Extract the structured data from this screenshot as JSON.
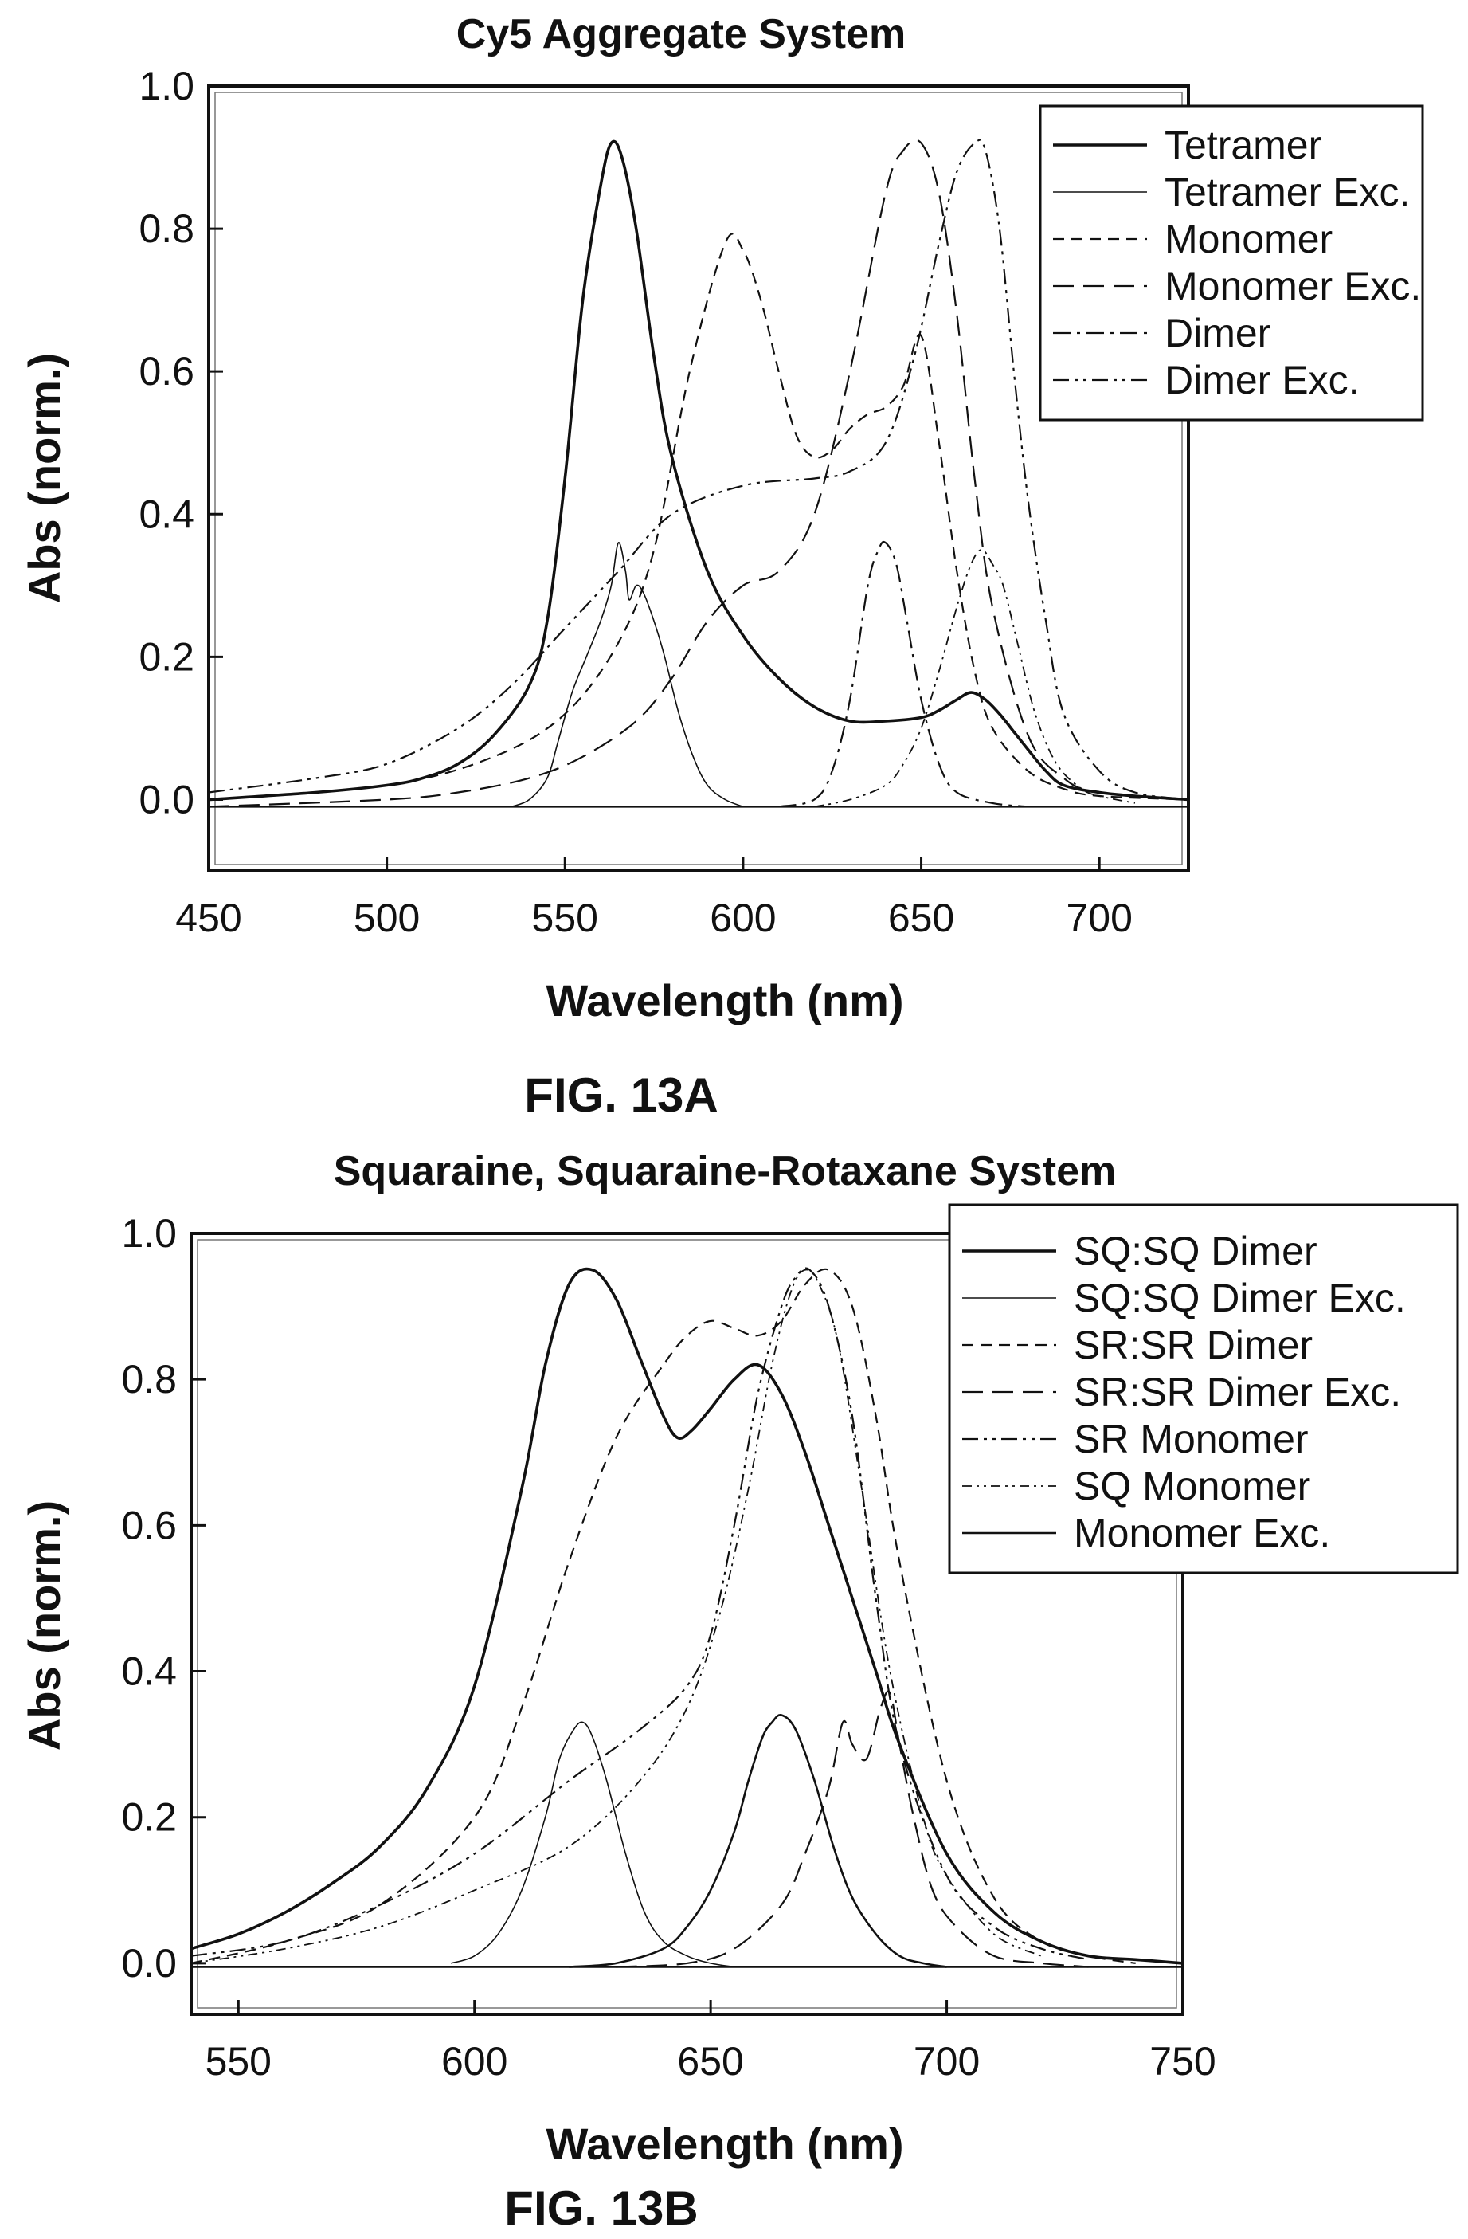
{
  "chart_data": [
    {
      "type": "line",
      "title": "Cy5 Aggregate System",
      "xlabel": "Wavelength (nm)",
      "ylabel": "Abs (norm.)",
      "figure_label": "FIG. 13A",
      "xlim": [
        450,
        725
      ],
      "ylim": [
        -0.1,
        1.0
      ],
      "xticks": [
        450,
        500,
        550,
        600,
        650,
        700
      ],
      "xtick_labels": [
        "450",
        "500",
        "550",
        "600",
        "650",
        "700"
      ],
      "yticks": [
        0.0,
        0.2,
        0.4,
        0.6,
        0.8,
        1.0
      ],
      "ytick_labels": [
        "0.0",
        "0.2",
        "0.4",
        "0.6",
        "0.8",
        "1.0"
      ],
      "baseline": -0.01,
      "legend_position": "top-right",
      "series": [
        {
          "name": "Tetramer",
          "style": "solid-bold",
          "x": [
            450,
            480,
            500,
            510,
            520,
            530,
            540,
            545,
            550,
            555,
            560,
            563,
            566,
            570,
            575,
            580,
            590,
            600,
            610,
            620,
            630,
            640,
            650,
            655,
            660,
            664,
            668,
            672,
            676,
            680,
            685,
            690,
            700,
            710,
            725
          ],
          "y": [
            0.0,
            0.01,
            0.02,
            0.03,
            0.05,
            0.09,
            0.16,
            0.25,
            0.45,
            0.7,
            0.86,
            0.92,
            0.9,
            0.8,
            0.62,
            0.48,
            0.32,
            0.23,
            0.17,
            0.13,
            0.11,
            0.11,
            0.115,
            0.125,
            0.14,
            0.15,
            0.14,
            0.12,
            0.095,
            0.07,
            0.04,
            0.02,
            0.01,
            0.005,
            0.0
          ]
        },
        {
          "name": "Tetramer Exc.",
          "style": "solid-thin",
          "x": [
            535,
            540,
            545,
            548,
            552,
            556,
            560,
            563,
            565,
            567,
            568,
            570,
            572,
            575,
            578,
            582,
            586,
            590,
            595,
            600
          ],
          "y": [
            -0.01,
            0.0,
            0.03,
            0.08,
            0.15,
            0.2,
            0.25,
            0.3,
            0.36,
            0.32,
            0.28,
            0.3,
            0.29,
            0.25,
            0.2,
            0.12,
            0.06,
            0.02,
            0.0,
            -0.01
          ]
        },
        {
          "name": "Monomer",
          "style": "dash-short",
          "x": [
            450,
            500,
            530,
            550,
            565,
            575,
            585,
            595,
            600,
            605,
            610,
            615,
            620,
            625,
            630,
            635,
            640,
            645,
            650,
            655,
            660,
            665,
            670,
            680,
            690,
            700,
            725
          ],
          "y": [
            0.0,
            0.02,
            0.06,
            0.12,
            0.22,
            0.35,
            0.6,
            0.78,
            0.77,
            0.7,
            0.6,
            0.51,
            0.48,
            0.49,
            0.52,
            0.54,
            0.55,
            0.58,
            0.65,
            0.5,
            0.32,
            0.18,
            0.1,
            0.04,
            0.015,
            0.005,
            0.0
          ]
        },
        {
          "name": "Monomer Exc.",
          "style": "dash-long",
          "x": [
            450,
            500,
            520,
            540,
            555,
            570,
            580,
            590,
            600,
            610,
            620,
            630,
            640,
            645,
            650,
            655,
            660,
            665,
            670,
            680,
            690,
            700,
            725
          ],
          "y": [
            -0.01,
            0.0,
            0.01,
            0.03,
            0.06,
            0.11,
            0.17,
            0.25,
            0.3,
            0.32,
            0.4,
            0.6,
            0.85,
            0.91,
            0.92,
            0.85,
            0.68,
            0.45,
            0.27,
            0.09,
            0.03,
            0.01,
            0.0
          ]
        },
        {
          "name": "Dimer",
          "style": "dash-dot",
          "x": [
            610,
            620,
            625,
            630,
            635,
            638,
            640,
            643,
            646,
            650,
            655,
            660,
            670,
            680
          ],
          "y": [
            -0.01,
            0.0,
            0.04,
            0.14,
            0.3,
            0.35,
            0.36,
            0.33,
            0.25,
            0.14,
            0.05,
            0.01,
            -0.005,
            -0.01
          ]
        },
        {
          "name": "Dimer Exc.",
          "style": "dash-dot-dot",
          "x": [
            450,
            480,
            500,
            520,
            535,
            550,
            565,
            580,
            600,
            620,
            630,
            640,
            648,
            655,
            660,
            665,
            668,
            672,
            676,
            680,
            685,
            690,
            700,
            710,
            725
          ],
          "y": [
            0.01,
            0.03,
            0.05,
            0.1,
            0.16,
            0.24,
            0.32,
            0.4,
            0.44,
            0.45,
            0.46,
            0.5,
            0.62,
            0.78,
            0.88,
            0.92,
            0.91,
            0.8,
            0.6,
            0.42,
            0.25,
            0.12,
            0.04,
            0.01,
            0.0
          ]
        },
        {
          "name": "Dimer Exc.",
          "style": "dash-dot-dot-small",
          "x": [
            620,
            630,
            640,
            645,
            650,
            655,
            660,
            664,
            667,
            670,
            673,
            677,
            682,
            688,
            695,
            700,
            710
          ],
          "y": [
            -0.01,
            0.0,
            0.02,
            0.05,
            0.1,
            0.18,
            0.27,
            0.33,
            0.35,
            0.33,
            0.3,
            0.22,
            0.12,
            0.05,
            0.015,
            0.005,
            -0.005
          ]
        }
      ]
    },
    {
      "type": "line",
      "title": "Squaraine, Squaraine-Rotaxane System",
      "xlabel": "Wavelength (nm)",
      "ylabel": "Abs (norm.)",
      "figure_label": "FIG. 13B",
      "xlim": [
        540,
        750
      ],
      "ylim": [
        -0.07,
        1.0
      ],
      "xticks": [
        550,
        600,
        650,
        700,
        750
      ],
      "xtick_labels": [
        "550",
        "600",
        "650",
        "700",
        "750"
      ],
      "yticks": [
        0.0,
        0.2,
        0.4,
        0.6,
        0.8,
        1.0
      ],
      "ytick_labels": [
        "0.0",
        "0.2",
        "0.4",
        "0.6",
        "0.8",
        "1.0"
      ],
      "baseline": -0.005,
      "legend_position": "top-right",
      "series": [
        {
          "name": "SQ:SQ Dimer",
          "style": "solid-bold",
          "x": [
            540,
            550,
            560,
            570,
            580,
            590,
            600,
            610,
            615,
            620,
            625,
            630,
            635,
            640,
            643,
            646,
            650,
            655,
            660,
            665,
            670,
            675,
            680,
            685,
            690,
            700,
            710,
            720,
            730,
            740,
            750
          ],
          "y": [
            0.02,
            0.04,
            0.07,
            0.11,
            0.16,
            0.24,
            0.38,
            0.65,
            0.82,
            0.93,
            0.95,
            0.91,
            0.83,
            0.75,
            0.72,
            0.73,
            0.76,
            0.8,
            0.82,
            0.78,
            0.7,
            0.6,
            0.5,
            0.4,
            0.3,
            0.15,
            0.07,
            0.03,
            0.01,
            0.005,
            0.0
          ]
        },
        {
          "name": "SQ:SQ Dimer Exc.",
          "style": "solid-thin",
          "x": [
            595,
            600,
            605,
            610,
            615,
            618,
            621,
            623,
            625,
            628,
            632,
            636,
            640,
            645,
            650,
            655
          ],
          "y": [
            0.0,
            0.01,
            0.04,
            0.1,
            0.2,
            0.28,
            0.32,
            0.33,
            0.31,
            0.25,
            0.15,
            0.07,
            0.03,
            0.01,
            0.0,
            -0.005
          ]
        },
        {
          "name": "SR:SR Dimer",
          "style": "dash-short",
          "x": [
            540,
            560,
            580,
            600,
            610,
            620,
            630,
            640,
            645,
            650,
            655,
            660,
            665,
            670,
            675,
            680,
            685,
            690,
            700,
            710,
            720,
            730,
            740
          ],
          "y": [
            0.0,
            0.03,
            0.08,
            0.2,
            0.35,
            0.55,
            0.72,
            0.82,
            0.86,
            0.88,
            0.87,
            0.86,
            0.88,
            0.93,
            0.95,
            0.9,
            0.75,
            0.55,
            0.25,
            0.09,
            0.03,
            0.01,
            0.0
          ]
        },
        {
          "name": "SR:SR Dimer Exc.",
          "style": "dash-long",
          "x": [
            630,
            645,
            655,
            665,
            670,
            675,
            678,
            680,
            683,
            686,
            688,
            690,
            693,
            697,
            702,
            710,
            720,
            730
          ],
          "y": [
            -0.005,
            0.0,
            0.02,
            0.08,
            0.15,
            0.24,
            0.33,
            0.3,
            0.28,
            0.35,
            0.37,
            0.3,
            0.2,
            0.1,
            0.05,
            0.01,
            0.0,
            -0.005
          ]
        },
        {
          "name": "SR Monomer",
          "style": "dash-dot-dot",
          "x": [
            540,
            560,
            580,
            600,
            620,
            635,
            645,
            650,
            655,
            660,
            665,
            668,
            671,
            675,
            680,
            685,
            690,
            700,
            710,
            720,
            730
          ],
          "y": [
            0.01,
            0.03,
            0.08,
            0.15,
            0.25,
            0.32,
            0.38,
            0.45,
            0.6,
            0.78,
            0.9,
            0.94,
            0.95,
            0.9,
            0.75,
            0.5,
            0.3,
            0.12,
            0.05,
            0.02,
            0.005
          ]
        },
        {
          "name": "SQ Monomer",
          "style": "dash-dot-dot-small",
          "x": [
            540,
            560,
            580,
            600,
            620,
            635,
            645,
            652,
            658,
            663,
            667,
            670,
            673,
            677,
            682,
            688,
            695,
            700,
            710,
            720
          ],
          "y": [
            0.0,
            0.02,
            0.05,
            0.1,
            0.16,
            0.25,
            0.35,
            0.48,
            0.65,
            0.82,
            0.92,
            0.95,
            0.93,
            0.85,
            0.65,
            0.4,
            0.2,
            0.12,
            0.04,
            0.01
          ]
        },
        {
          "name": "Monomer Exc.",
          "style": "solid",
          "x": [
            620,
            630,
            640,
            645,
            650,
            655,
            658,
            661,
            663,
            665,
            668,
            672,
            676,
            680,
            685,
            690,
            695,
            700
          ],
          "y": [
            -0.005,
            0.0,
            0.02,
            0.05,
            0.1,
            0.18,
            0.25,
            0.31,
            0.33,
            0.34,
            0.32,
            0.25,
            0.16,
            0.09,
            0.04,
            0.01,
            0.0,
            -0.005
          ]
        }
      ]
    }
  ]
}
